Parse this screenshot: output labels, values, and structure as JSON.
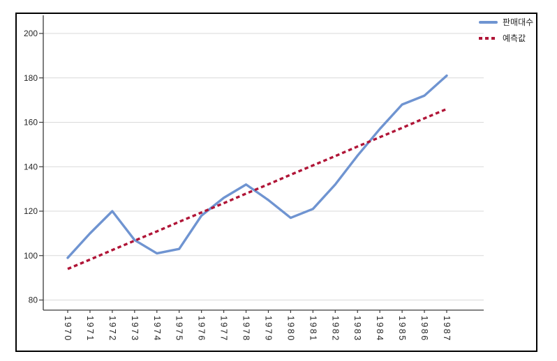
{
  "colors": {
    "sales_line": "#6F94D1",
    "forecast_line": "#B01537",
    "gridline": "#D9D9D9",
    "axis": "#3A3A3A",
    "text": "#262626",
    "frame_border": "#000000",
    "background": "#FFFFFF"
  },
  "chart_data": {
    "type": "line",
    "title": "",
    "xlabel": "",
    "ylabel": "",
    "x": [
      1970,
      1971,
      1972,
      1973,
      1974,
      1975,
      1976,
      1977,
      1978,
      1979,
      1980,
      1981,
      1982,
      1983,
      1984,
      1985,
      1986,
      1987
    ],
    "series": [
      {
        "key": "sales",
        "name": "판매대수",
        "style": "solid",
        "color": "#6F94D1",
        "values": [
          99,
          110,
          120,
          107,
          101,
          103,
          118,
          126,
          132,
          125,
          117,
          121,
          132,
          145,
          157,
          168,
          172,
          181
        ]
      },
      {
        "key": "forecast",
        "name": "예측값",
        "style": "dashed",
        "color": "#B01537",
        "values": [
          94.0,
          98.2,
          102.5,
          106.7,
          110.9,
          115.2,
          119.4,
          123.6,
          127.9,
          132.1,
          136.4,
          140.6,
          144.8,
          149.1,
          153.3,
          157.5,
          161.8,
          166.0
        ]
      }
    ],
    "yticks": [
      80,
      100,
      120,
      140,
      160,
      180,
      200
    ],
    "ylim": [
      75,
      208
    ],
    "grid": "horizontal",
    "legend_position": "top-right",
    "x_tick_rotation": 90
  }
}
